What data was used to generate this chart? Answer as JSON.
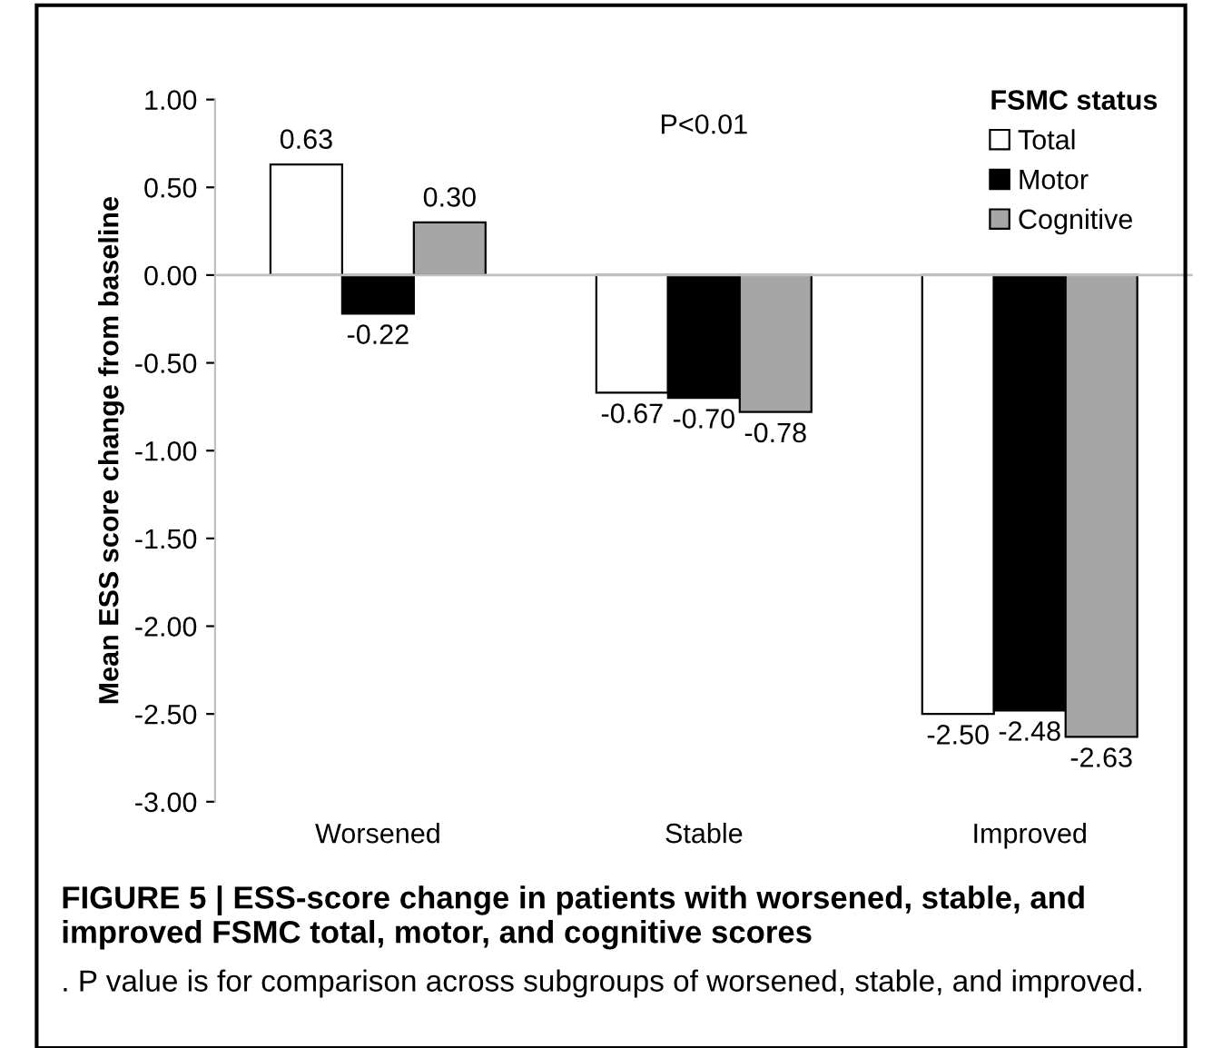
{
  "chart_data": {
    "type": "bar",
    "ylabel": "Mean ESS score change from baseline",
    "legend_title": "FSMC status",
    "categories": [
      "Worsened",
      "Stable",
      "Improved"
    ],
    "series": [
      {
        "name": "Total",
        "color": "#ffffff",
        "values": [
          0.63,
          -0.67,
          -2.5
        ],
        "value_labels": [
          "0.63",
          "-0.67",
          "-2.50"
        ]
      },
      {
        "name": "Motor",
        "color": "#000000",
        "values": [
          -0.22,
          -0.7,
          -2.48
        ],
        "value_labels": [
          "-0.22",
          "-0.70",
          "-2.48"
        ]
      },
      {
        "name": "Cognitive",
        "color": "#a6a6a6",
        "values": [
          0.3,
          -0.78,
          -2.63
        ],
        "value_labels": [
          "0.30",
          "-0.78",
          "-2.63"
        ]
      }
    ],
    "ylim": [
      -3,
      1
    ],
    "yticks": [
      {
        "value": 1,
        "label": "1.00"
      },
      {
        "value": 0.5,
        "label": "0.50"
      },
      {
        "value": 0,
        "label": "0.00"
      },
      {
        "value": -0.5,
        "label": "-0.50"
      },
      {
        "value": -1,
        "label": "-1.00"
      },
      {
        "value": -1.5,
        "label": "-1.50"
      },
      {
        "value": -2,
        "label": "-2.00"
      },
      {
        "value": -2.5,
        "label": "-2.50"
      },
      {
        "value": -3,
        "label": "-3.00"
      }
    ],
    "grid": false,
    "legend": "top right",
    "ref_lines": [
      {
        "axis": "y",
        "value": 0,
        "color": "#bfbfbf"
      }
    ],
    "annotations": [
      "P<0.01",
      "FIGURE 5 | ESS-score change in patients with worsened, stable, and improved FSMC total, motor, and cognitive scores",
      ". P value is for comparison across subgroups of worsened, stable, and improved."
    ]
  }
}
